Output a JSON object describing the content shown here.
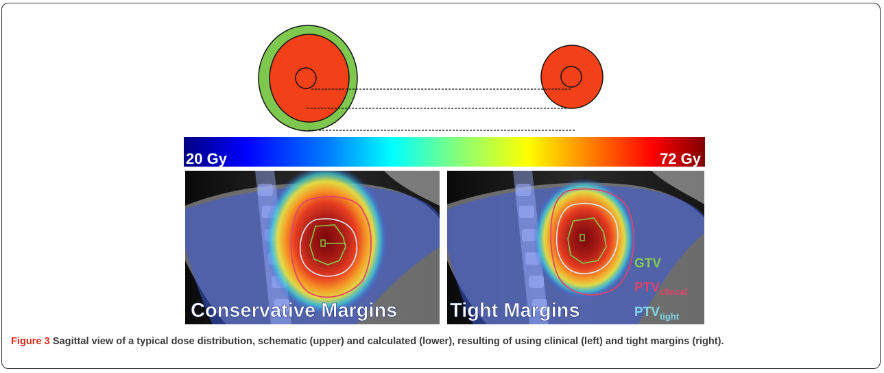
{
  "colorbar": {
    "min_label": "20 Gy",
    "max_label": "72 Gy",
    "stops": [
      "#000080",
      "#0000ff",
      "#0080ff",
      "#00ffff",
      "#80ff80",
      "#ffff00",
      "#ff8000",
      "#ff0000",
      "#800000"
    ]
  },
  "panels": {
    "left_label": "Conservative Margins",
    "right_label": "Tight Margins"
  },
  "legend": {
    "gtv": "GTV",
    "ptv_clinical_main": "PTV",
    "ptv_clinical_sub": "clincal",
    "ptv_tight_main": "PTV",
    "ptv_tight_sub": "tight"
  },
  "colors": {
    "gtv": "#7fd14a",
    "ptv_clinical": "#e0436a",
    "ptv_tight": "#7fd7e8",
    "schematic_green": "#7ec850",
    "schematic_red": "#f24018",
    "caption_label": "#e0281b"
  },
  "caption": {
    "label": "Figure 3",
    "text": "Sagittal view of a typical dose distribution, schematic (upper) and calculated (lower), resulting of using clinical (left) and tight margins (right)."
  }
}
